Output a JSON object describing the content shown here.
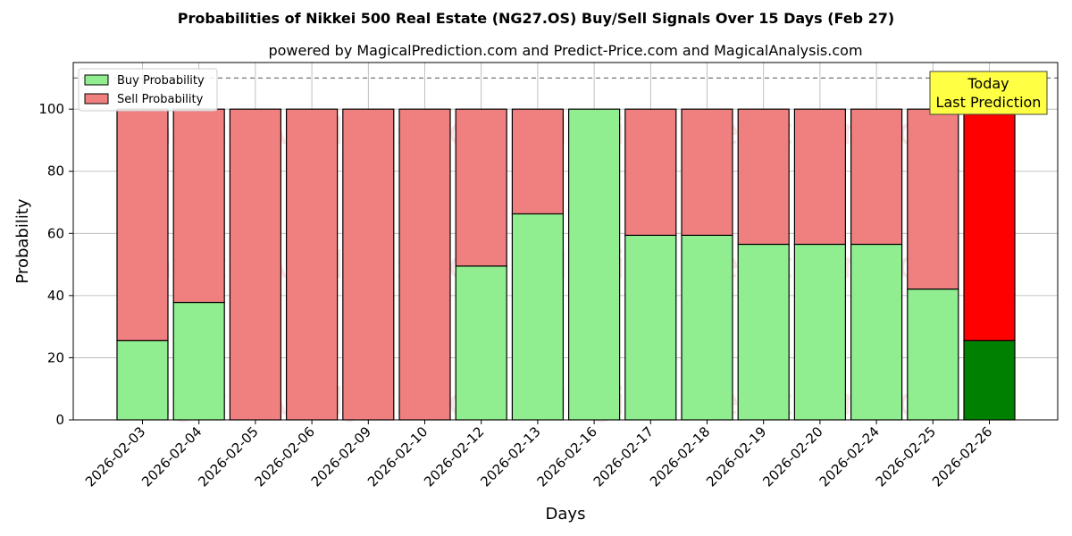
{
  "chart_data": {
    "type": "bar",
    "stacked": true,
    "title": "Probabilities of Nikkei 500 Real Estate (NG27.OS) Buy/Sell Signals Over 15 Days (Feb 27)",
    "subtitle": "powered by MagicalPrediction.com and Predict-Price.com and MagicalAnalysis.com",
    "xlabel": "Days",
    "ylabel": "Probability",
    "ylim": [
      0,
      115
    ],
    "yticks": [
      0,
      20,
      40,
      60,
      80,
      100
    ],
    "reference_line": 110,
    "grid": true,
    "legend_position": "top-left",
    "categories": [
      "2026-02-03",
      "2026-02-04",
      "2026-02-05",
      "2026-02-06",
      "2026-02-09",
      "2026-02-10",
      "2026-02-12",
      "2026-02-13",
      "2026-02-16",
      "2026-02-17",
      "2026-02-18",
      "2026-02-19",
      "2026-02-20",
      "2026-02-24",
      "2026-02-25",
      "2026-02-26"
    ],
    "series": [
      {
        "name": "Buy Probability",
        "color": "#90ee90",
        "values": [
          25.5,
          37.8,
          0,
          0,
          0,
          0,
          49.5,
          66.3,
          100,
          59.4,
          59.4,
          56.5,
          56.5,
          56.5,
          42.1,
          25.5
        ]
      },
      {
        "name": "Sell Probability",
        "color": "#f08080",
        "values": [
          74.5,
          62.2,
          100,
          100,
          100,
          100,
          50.5,
          33.7,
          0,
          40.6,
          40.6,
          43.5,
          43.5,
          43.5,
          57.9,
          74.5
        ]
      }
    ],
    "highlight": {
      "index": 15,
      "buy_color": "#008000",
      "sell_color": "#ff0000"
    },
    "annotation": {
      "lines": [
        "Today",
        "Last Prediction"
      ],
      "background": "#ffff44"
    },
    "watermarks": [
      "MagicalAnalysis.com",
      "MagicalPrediction.com"
    ]
  }
}
